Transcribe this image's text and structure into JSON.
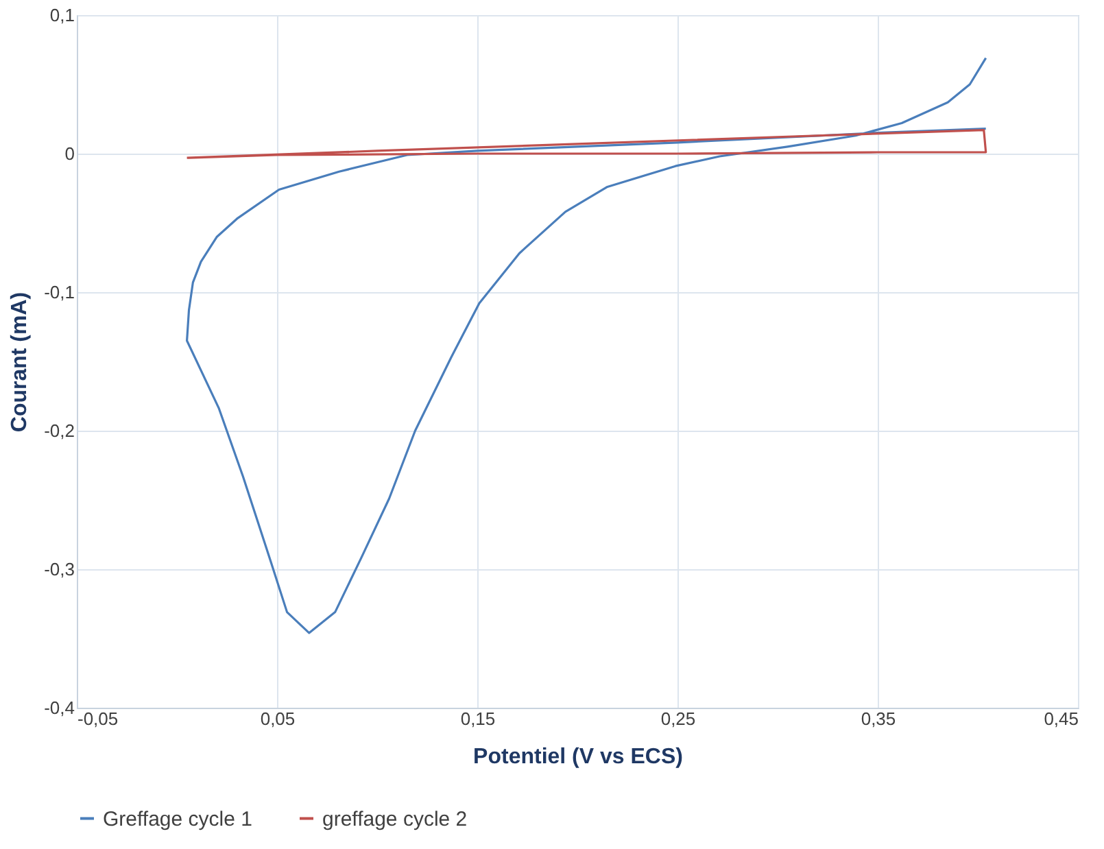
{
  "chart_data": {
    "type": "line",
    "xlabel": "Potentiel (V vs ECS)",
    "ylabel": "Courant (mA)",
    "xlim": [
      -0.05,
      0.45
    ],
    "ylim": [
      -0.4,
      0.1
    ],
    "xticks": [
      {
        "value": -0.05,
        "label": "-0,05"
      },
      {
        "value": 0.05,
        "label": "0,05"
      },
      {
        "value": 0.15,
        "label": "0,15"
      },
      {
        "value": 0.25,
        "label": "0,25"
      },
      {
        "value": 0.35,
        "label": "0,35"
      },
      {
        "value": 0.45,
        "label": "0,45"
      }
    ],
    "yticks": [
      {
        "value": 0.1,
        "label": "0,1"
      },
      0,
      {
        "value": -0.1,
        "label": "-0,1"
      },
      {
        "value": -0.2,
        "label": "-0,2"
      },
      {
        "value": -0.3,
        "label": "-0,3"
      },
      {
        "value": -0.4,
        "label": "-0,4"
      }
    ],
    "grid": true,
    "legend": "bottom",
    "marker": "none",
    "line_style": "solid",
    "series": [
      {
        "name": "Greffage cycle 1",
        "color": "#4a7ebb",
        "x": [
          0.404,
          0.35,
          0.25,
          0.15,
          0.115,
          0.081,
          0.051,
          0.03,
          0.02,
          0.012,
          0.008,
          0.006,
          0.005,
          0.021,
          0.033,
          0.047,
          0.055,
          0.066,
          0.079,
          0.092,
          0.106,
          0.119,
          0.137,
          0.151,
          0.171,
          0.194,
          0.215,
          0.249,
          0.271,
          0.305,
          0.339,
          0.362,
          0.385,
          0.396,
          0.404
        ],
        "values": [
          0.018,
          0.015,
          0.008,
          0.002,
          -0.001,
          -0.013,
          -0.026,
          -0.047,
          -0.06,
          -0.078,
          -0.093,
          -0.113,
          -0.135,
          -0.184,
          -0.233,
          -0.295,
          -0.331,
          -0.346,
          -0.331,
          -0.292,
          -0.249,
          -0.2,
          -0.147,
          -0.108,
          -0.072,
          -0.042,
          -0.024,
          -0.009,
          -0.002,
          0.005,
          0.013,
          0.022,
          0.037,
          0.05,
          0.069
        ]
      },
      {
        "name": "greffage cycle 2",
        "color": "#c0504d",
        "x": [
          0.005,
          0.1,
          0.2,
          0.3,
          0.403,
          0.404,
          0.35,
          0.25,
          0.15,
          0.05,
          0.006
        ],
        "values": [
          -0.003,
          0.002,
          0.007,
          0.012,
          0.017,
          0.001,
          0.001,
          0.0,
          0.0,
          -0.001,
          -0.003
        ]
      }
    ]
  }
}
